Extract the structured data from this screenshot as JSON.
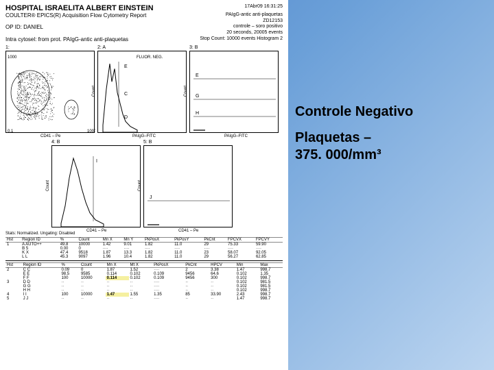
{
  "header": {
    "hospital": "HOSPITAL ISRAELITA ALBERT EINSTEIN",
    "instrument": "COULTER® EPICS(R) Acquisition Flow Cytometry Report",
    "opid": "OP ID: DANIEL",
    "protocol": "Intra cytosel: from prot. PAIgG-antic anti-plaquetas",
    "datetime": "17Abr09  16:31:25",
    "sample": "PAIgG-antic anti-plaquetas",
    "runid": "ZD12153",
    "control": "controle – soro positivo",
    "acq": "20 seconds,  20005 events",
    "stop": "Stop Count: 10000 events  Histogram 2"
  },
  "charts": {
    "row1": [
      {
        "label": "1:",
        "xaxis": "CD41 – Pe",
        "ytop": "1000",
        "ybot": "0.1",
        "xr": "1000",
        "type": "scatter"
      },
      {
        "label": "2:  A",
        "title": "FLUOR. NEG.",
        "xaxis": "PAIgG–FITC",
        "yaxis": "Count",
        "xr": "1000",
        "type": "hist"
      },
      {
        "label": "3:  B",
        "xaxis": "PAIgG–FITC",
        "yaxis": "Count",
        "xr": "1000",
        "type": "hist-flat"
      }
    ],
    "row2": [
      {
        "label": "4:  B",
        "xaxis": "CD41 – Pe",
        "yaxis": "Count",
        "xr": "1000",
        "type": "hist2"
      },
      {
        "label": "5:  B",
        "xaxis": "CD41 – Pe",
        "yaxis": "Count",
        "xr": "1000",
        "type": "hist-flat2"
      }
    ],
    "scatter_color": "#000000",
    "hist1": {
      "x": [
        5,
        10,
        15,
        18,
        22,
        26,
        30,
        34,
        38,
        45,
        55
      ],
      "y": [
        10,
        60,
        95,
        70,
        88,
        55,
        40,
        25,
        15,
        8,
        3
      ],
      "color": "#000"
    },
    "hist2": {
      "x": [
        8,
        14,
        20,
        26,
        32,
        38,
        44,
        50,
        58,
        70
      ],
      "y": [
        5,
        30,
        70,
        98,
        80,
        55,
        35,
        20,
        10,
        4
      ],
      "color": "#000"
    }
  },
  "tables": {
    "stats_label": "Stats: Normalized.     Ungating: Disabled",
    "t1": {
      "cols": [
        "Hst",
        "Region ID",
        "%",
        "Count",
        "Mn X",
        "Mn Y",
        "PkPosX",
        "PkPosY",
        "PkCnt",
        "FPCVX",
        "FPCVY"
      ],
      "rows": [
        [
          "1",
          "A  AUTO++",
          "49.8",
          "10000",
          "1.42",
          "9.01",
          "1.82",
          "11.0",
          "29",
          "75.33",
          "59.90"
        ],
        [
          "",
          "B  5",
          "0.00",
          "0",
          "····",
          "····",
          "····",
          "····",
          "····",
          "····",
          "····"
        ],
        [
          "",
          "K  X",
          "47.4",
          "9518",
          "1.87",
          "13.3",
          "1.82",
          "11.0",
          "23",
          "58.07",
          "92.05"
        ],
        [
          "",
          "L  L",
          "45.3",
          "9097",
          "1.96",
          "10.4",
          "1.82",
          "11.0",
          "29",
          "56.27",
          "62.85"
        ]
      ]
    },
    "t2": {
      "cols": [
        "Hst",
        "Region ID",
        "%",
        "Count",
        "Mn X",
        "Mt X",
        "PkPosX",
        "PkCnt",
        "HPCV",
        "Min",
        "Max"
      ],
      "rows": [
        [
          "2",
          "C  C",
          "0.09",
          "0",
          "1.87",
          "1.52",
          "····",
          "2",
          "3.38",
          "1.47",
          "998.7"
        ],
        [
          "",
          "E  E",
          "98.5",
          "9585",
          "0.114",
          "0.102",
          "0.109",
          "9456",
          "64.6",
          "0.102",
          "1.35"
        ],
        [
          "",
          "F  F",
          "100",
          "10000",
          "0.114",
          "0.102",
          "0.109",
          "9456",
          "300",
          "0.102",
          "998.7"
        ],
        [
          "3",
          "D  D",
          "··",
          "··",
          "··",
          "··",
          "····",
          "··",
          "··",
          "0.102",
          "981.5"
        ],
        [
          "",
          "G  G",
          "··",
          "··",
          "··",
          "··",
          "····",
          "··",
          "··",
          "0.102",
          "981.5"
        ],
        [
          "",
          "H  H",
          "··",
          "··",
          "··",
          "··",
          "····",
          "··",
          "··",
          "0.102",
          "998.7"
        ],
        [
          "4",
          "I  I",
          "100",
          "10000",
          "1.47",
          "1.55",
          "1.35",
          "85",
          "33.90",
          "2.43",
          "998.7"
        ],
        [
          "5",
          "J  J",
          "··",
          "··",
          "··",
          "··",
          "····",
          "··",
          "··",
          "1.47",
          "998.7"
        ]
      ]
    },
    "highlight1": {
      "row": 2,
      "col": 4,
      "value": "0.114",
      "bg": "#f5f0a0"
    },
    "highlight2": {
      "row": 6,
      "col": 4,
      "value": "1.47",
      "bg": "#f5f0a0"
    }
  },
  "annotation": {
    "title": "Controle Negativo",
    "line1": "Plaquetas –",
    "line2": "375. 000/mm³"
  },
  "colors": {
    "bg_grad_start": "#4a7fc8",
    "bg_grad_end": "#bcd5f0",
    "text": "#000000"
  }
}
